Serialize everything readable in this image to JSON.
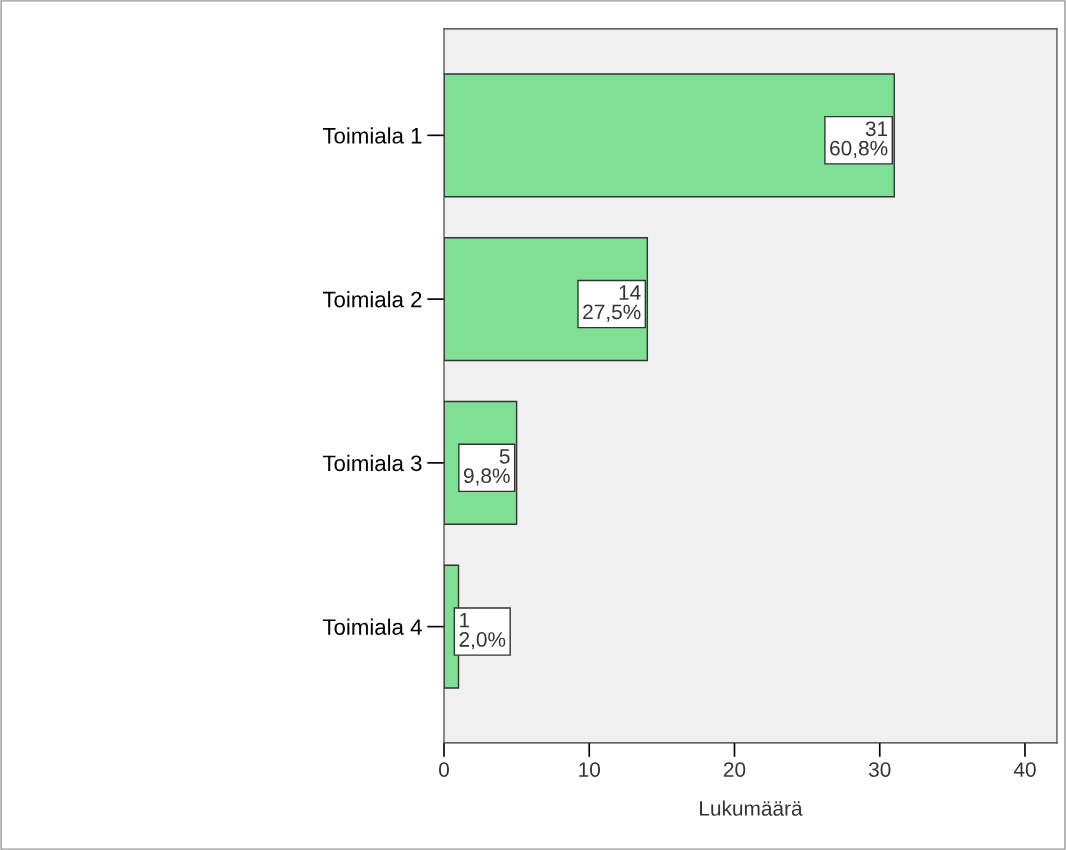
{
  "chart_data": {
    "type": "bar",
    "orientation": "horizontal",
    "categories": [
      "Toimiala 1",
      "Toimiala 2",
      "Toimiala 3",
      "Toimiala 4"
    ],
    "values": [
      31,
      14,
      5,
      1
    ],
    "value_labels": [
      "31\n60,8%",
      "14\n27,5%",
      "5\n9,8%",
      "1\n2,0%"
    ],
    "color": "#7fdf95",
    "xlim": [
      0,
      42.2
    ],
    "xticks": [
      0,
      10,
      20,
      30,
      40
    ],
    "xlabel": "Lukumäärä",
    "grid": false,
    "legend": false
  }
}
